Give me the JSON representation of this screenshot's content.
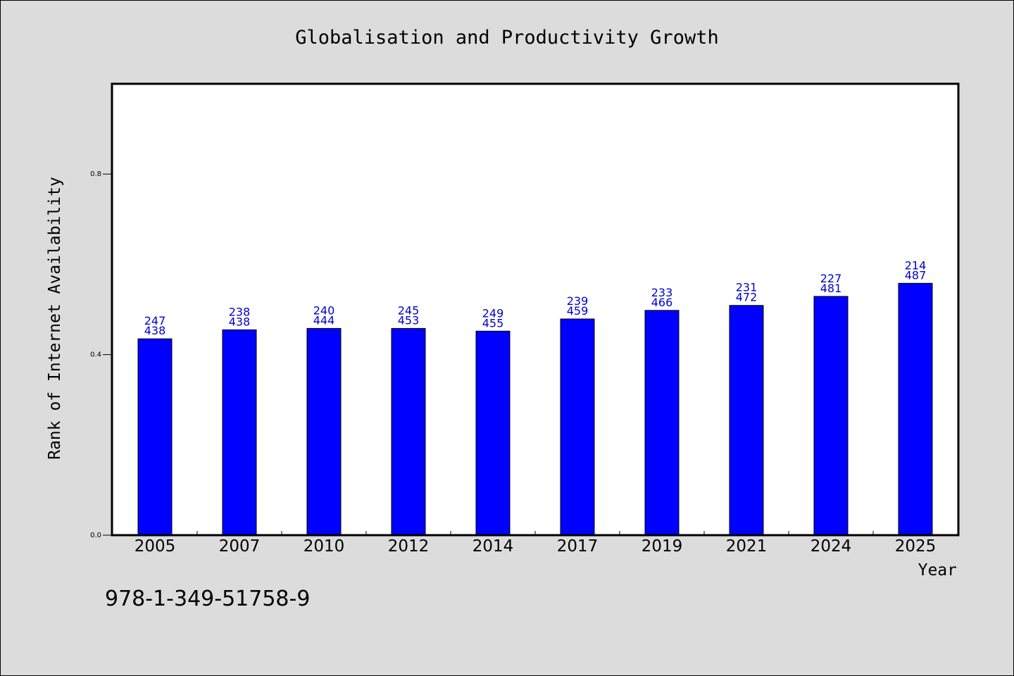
{
  "chart_data": {
    "type": "bar",
    "title": "Globalisation and Productivity Growth",
    "xlabel": "Year",
    "ylabel": "Rank of Internet Availability",
    "categories": [
      "2005",
      "2007",
      "2010",
      "2012",
      "2014",
      "2017",
      "2019",
      "2021",
      "2024",
      "2025"
    ],
    "values": [
      0.435,
      0.455,
      0.458,
      0.458,
      0.452,
      0.479,
      0.498,
      0.509,
      0.529,
      0.558
    ],
    "label_top": [
      "247",
      "238",
      "240",
      "245",
      "249",
      "239",
      "233",
      "231",
      "227",
      "214"
    ],
    "label_bottom": [
      "438",
      "438",
      "444",
      "453",
      "455",
      "459",
      "466",
      "472",
      "481",
      "487"
    ],
    "ylim": [
      0,
      1.0
    ],
    "yticks": [
      0.0,
      0.4,
      0.8
    ],
    "ytick_labels": [
      "0.0",
      "0.4",
      "0.8"
    ],
    "grid": false,
    "bar_color": "#0000ff",
    "label_color": "#0000cc"
  },
  "footer_code": "978-1-349-51758-9"
}
